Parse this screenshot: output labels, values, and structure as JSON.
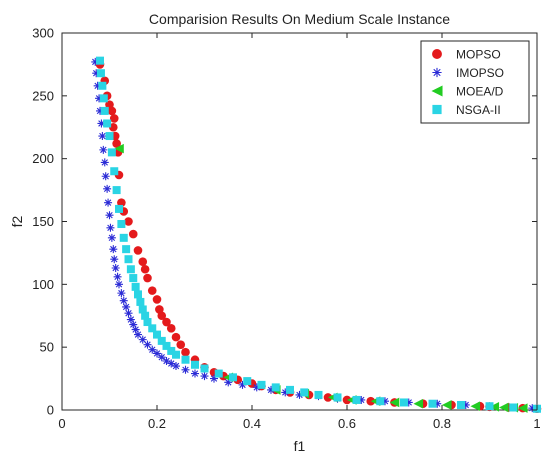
{
  "chart_data": {
    "type": "scatter",
    "title": "Comparision Results On Medium Scale Instance",
    "xlabel": "f1",
    "ylabel": "f2",
    "xlim": [
      0,
      1
    ],
    "ylim": [
      0,
      300
    ],
    "xticks": [
      0,
      0.2,
      0.4,
      0.6,
      0.8,
      1
    ],
    "xtick_labels": [
      "0",
      "0.2",
      "0.4",
      "0.6",
      "0.8",
      "1"
    ],
    "yticks": [
      0,
      50,
      100,
      150,
      200,
      250,
      300
    ],
    "ytick_labels": [
      "0",
      "50",
      "100",
      "150",
      "200",
      "250",
      "300"
    ],
    "grid": false,
    "legend_position": "top-right",
    "series": [
      {
        "name": "MOPSO",
        "marker": "circle",
        "color": "#e41a1c",
        "points": [
          [
            0.08,
            275
          ],
          [
            0.09,
            262
          ],
          [
            0.095,
            250
          ],
          [
            0.1,
            243
          ],
          [
            0.105,
            238
          ],
          [
            0.11,
            232
          ],
          [
            0.108,
            225
          ],
          [
            0.112,
            218
          ],
          [
            0.115,
            212
          ],
          [
            0.118,
            205
          ],
          [
            0.12,
            187
          ],
          [
            0.125,
            165
          ],
          [
            0.13,
            158
          ],
          [
            0.14,
            150
          ],
          [
            0.15,
            140
          ],
          [
            0.16,
            127
          ],
          [
            0.17,
            118
          ],
          [
            0.175,
            112
          ],
          [
            0.18,
            105
          ],
          [
            0.19,
            95
          ],
          [
            0.2,
            88
          ],
          [
            0.205,
            80
          ],
          [
            0.21,
            75
          ],
          [
            0.22,
            70
          ],
          [
            0.23,
            65
          ],
          [
            0.24,
            58
          ],
          [
            0.25,
            52
          ],
          [
            0.26,
            46
          ],
          [
            0.28,
            40
          ],
          [
            0.3,
            34
          ],
          [
            0.32,
            30
          ],
          [
            0.34,
            27
          ],
          [
            0.37,
            24
          ],
          [
            0.4,
            21
          ],
          [
            0.42,
            19
          ],
          [
            0.45,
            16
          ],
          [
            0.48,
            14
          ],
          [
            0.52,
            12
          ],
          [
            0.56,
            10
          ],
          [
            0.6,
            8
          ],
          [
            0.65,
            7
          ],
          [
            0.7,
            6
          ],
          [
            0.76,
            5
          ],
          [
            0.82,
            4
          ],
          [
            0.88,
            3
          ],
          [
            0.9,
            2.5
          ],
          [
            0.94,
            2
          ],
          [
            0.97,
            1.5
          ],
          [
            1.0,
            1
          ]
        ]
      },
      {
        "name": "IMOPSO",
        "marker": "asterisk",
        "color": "#2b2bd6",
        "points": [
          [
            0.07,
            277
          ],
          [
            0.072,
            268
          ],
          [
            0.075,
            258
          ],
          [
            0.078,
            248
          ],
          [
            0.08,
            238
          ],
          [
            0.083,
            228
          ],
          [
            0.085,
            218
          ],
          [
            0.087,
            207
          ],
          [
            0.09,
            197
          ],
          [
            0.092,
            186
          ],
          [
            0.095,
            176
          ],
          [
            0.097,
            165
          ],
          [
            0.1,
            155
          ],
          [
            0.102,
            145
          ],
          [
            0.105,
            137
          ],
          [
            0.108,
            128
          ],
          [
            0.11,
            120
          ],
          [
            0.113,
            113
          ],
          [
            0.117,
            106
          ],
          [
            0.12,
            100
          ],
          [
            0.125,
            93
          ],
          [
            0.13,
            87
          ],
          [
            0.135,
            82
          ],
          [
            0.14,
            77
          ],
          [
            0.145,
            72
          ],
          [
            0.15,
            68
          ],
          [
            0.155,
            64
          ],
          [
            0.16,
            60
          ],
          [
            0.17,
            56
          ],
          [
            0.18,
            52
          ],
          [
            0.19,
            48
          ],
          [
            0.2,
            45
          ],
          [
            0.21,
            42
          ],
          [
            0.22,
            39
          ],
          [
            0.23,
            37
          ],
          [
            0.24,
            35
          ],
          [
            0.26,
            32
          ],
          [
            0.28,
            29
          ],
          [
            0.3,
            27
          ],
          [
            0.32,
            25
          ],
          [
            0.35,
            22
          ],
          [
            0.38,
            20
          ],
          [
            0.41,
            18
          ],
          [
            0.44,
            16
          ],
          [
            0.47,
            14
          ],
          [
            0.5,
            12
          ],
          [
            0.54,
            11
          ],
          [
            0.58,
            9
          ],
          [
            0.63,
            8
          ],
          [
            0.68,
            7
          ],
          [
            0.73,
            6
          ],
          [
            0.79,
            5
          ],
          [
            0.85,
            4
          ],
          [
            0.9,
            3
          ],
          [
            0.95,
            2
          ],
          [
            0.99,
            1.5
          ]
        ]
      },
      {
        "name": "MOEA/D",
        "marker": "triangle-left",
        "color": "#22cc22",
        "points": [
          [
            0.12,
            208
          ],
          [
            0.35,
            26
          ],
          [
            0.45,
            16
          ],
          [
            0.51,
            13
          ],
          [
            0.57,
            10
          ],
          [
            0.61,
            8
          ],
          [
            0.66,
            7
          ],
          [
            0.7,
            6
          ],
          [
            0.75,
            5
          ],
          [
            0.81,
            4
          ],
          [
            0.87,
            3
          ],
          [
            0.91,
            2.5
          ],
          [
            0.93,
            2
          ],
          [
            0.95,
            1.8
          ],
          [
            0.97,
            1.5
          ]
        ]
      },
      {
        "name": "NSGA-II",
        "marker": "square",
        "color": "#2ad4e4",
        "points": [
          [
            0.08,
            278
          ],
          [
            0.082,
            268
          ],
          [
            0.085,
            258
          ],
          [
            0.088,
            248
          ],
          [
            0.09,
            238
          ],
          [
            0.095,
            228
          ],
          [
            0.1,
            218
          ],
          [
            0.105,
            205
          ],
          [
            0.11,
            190
          ],
          [
            0.115,
            175
          ],
          [
            0.12,
            160
          ],
          [
            0.125,
            148
          ],
          [
            0.13,
            137
          ],
          [
            0.135,
            128
          ],
          [
            0.14,
            120
          ],
          [
            0.145,
            112
          ],
          [
            0.15,
            105
          ],
          [
            0.155,
            98
          ],
          [
            0.16,
            92
          ],
          [
            0.165,
            86
          ],
          [
            0.17,
            80
          ],
          [
            0.175,
            75
          ],
          [
            0.18,
            70
          ],
          [
            0.19,
            65
          ],
          [
            0.2,
            60
          ],
          [
            0.21,
            55
          ],
          [
            0.22,
            51
          ],
          [
            0.23,
            47
          ],
          [
            0.24,
            44
          ],
          [
            0.26,
            40
          ],
          [
            0.28,
            36
          ],
          [
            0.3,
            33
          ],
          [
            0.33,
            29
          ],
          [
            0.36,
            26
          ],
          [
            0.39,
            23
          ],
          [
            0.42,
            20
          ],
          [
            0.45,
            18
          ],
          [
            0.48,
            16
          ],
          [
            0.51,
            14
          ],
          [
            0.54,
            12
          ],
          [
            0.58,
            10
          ],
          [
            0.62,
            8
          ],
          [
            0.67,
            7
          ],
          [
            0.72,
            6
          ],
          [
            0.78,
            5
          ],
          [
            0.84,
            4
          ],
          [
            0.9,
            3
          ],
          [
            0.95,
            2
          ],
          [
            1.0,
            1
          ]
        ]
      }
    ]
  }
}
